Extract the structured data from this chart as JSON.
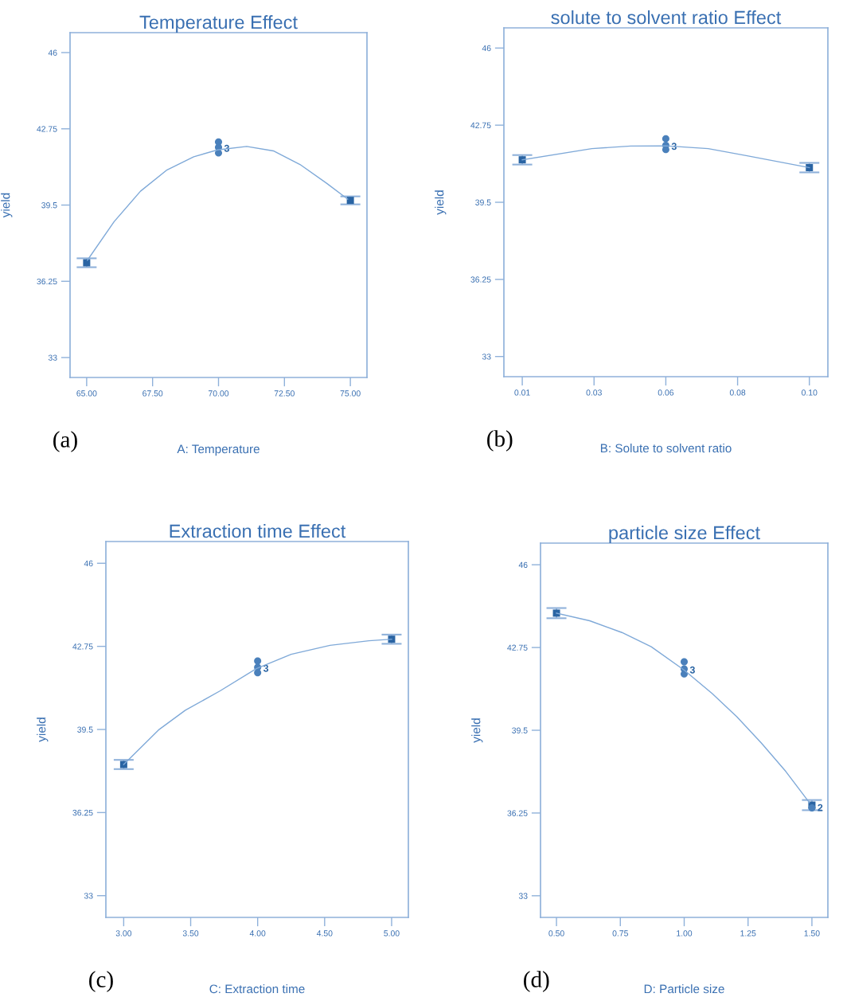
{
  "chart_data": [
    {
      "type": "line",
      "title": "Temperature Effect",
      "xlabel": "A: Temperature",
      "ylabel": "yield",
      "xlim": [
        64.37,
        75.63
      ],
      "ylim": [
        32.15,
        46.85
      ],
      "xticks": [
        {
          "value": 65,
          "label": "65.00"
        },
        {
          "value": 67.5,
          "label": "67.50"
        },
        {
          "value": 70,
          "label": "70.00"
        },
        {
          "value": 72.5,
          "label": "72.50"
        },
        {
          "value": 75,
          "label": "75.00"
        }
      ],
      "yticks": [
        33,
        36.25,
        39.5,
        42.75,
        46
      ],
      "series": [
        {
          "type": "line",
          "color": "#7fa9d8",
          "marker": "none",
          "line_style": "solid",
          "x": [
            65.03,
            66.04,
            67.04,
            68.05,
            69.06,
            69.96,
            71.07,
            72.08,
            73.09,
            74.1,
            74.9
          ],
          "values": [
            37.15,
            38.79,
            40.09,
            41.0,
            41.56,
            41.85,
            42.0,
            41.81,
            41.23,
            40.43,
            39.75
          ]
        },
        {
          "type": "scatter",
          "color": "#4a80bb",
          "marker": "circle",
          "x": [
            70,
            70,
            70
          ],
          "values": [
            42.19,
            41.96,
            41.72
          ]
        },
        {
          "type": "scatter",
          "color": "#2a64a3",
          "marker": "square",
          "x": [
            65,
            75
          ],
          "values": [
            37.04,
            39.7
          ],
          "errors": [
            0.19,
            0.17
          ]
        }
      ],
      "annotations": [
        {
          "text": "3",
          "x": 70,
          "y": 41.96
        },
        "(a)"
      ]
    },
    {
      "type": "line",
      "title": "solute to solvent ratio Effect",
      "xlabel": "B: Solute to solvent ratio",
      "ylabel": "yield",
      "xlim": [
        0.00424,
        0.1058
      ],
      "ylim": [
        32.15,
        46.85
      ],
      "xticks": [
        0.01,
        {
          "value": 0.0325,
          "label": "0.03"
        },
        {
          "value": 0.055,
          "label": "0.06"
        },
        {
          "value": 0.0775,
          "label": "0.08"
        },
        {
          "value": 0.1,
          "label": "0.10"
        }
      ],
      "yticks": [
        33,
        36.25,
        39.5,
        42.75,
        46
      ],
      "series": [
        {
          "type": "line",
          "color": "#7fa9d8",
          "marker": "none",
          "line_style": "solid",
          "x": [
            0.01,
            0.0318,
            0.044,
            0.055,
            0.0683,
            0.0805,
            0.1
          ],
          "values": [
            41.29,
            41.76,
            41.87,
            41.88,
            41.76,
            41.46,
            40.96
          ]
        },
        {
          "type": "scatter",
          "color": "#4a80bb",
          "marker": "circle",
          "x": [
            0.055,
            0.055,
            0.055
          ],
          "values": [
            42.18,
            41.9,
            41.72
          ]
        },
        {
          "type": "scatter",
          "color": "#2a64a3",
          "marker": "square",
          "x": [
            0.01,
            0.1
          ],
          "values": [
            41.29,
            40.96
          ],
          "errors": [
            0.2,
            0.2
          ]
        }
      ],
      "annotations": [
        {
          "text": "3",
          "x": 0.055,
          "y": 41.9
        },
        "(b)"
      ]
    },
    {
      "type": "line",
      "title": "Extraction time Effect",
      "xlabel": "C: Extraction time",
      "ylabel": "yield",
      "xlim": [
        2.867,
        5.125
      ],
      "ylim": [
        32.15,
        46.85
      ],
      "xticks": [
        {
          "value": 3,
          "label": "3.00"
        },
        {
          "value": 3.5,
          "label": "3.50"
        },
        {
          "value": 4,
          "label": "4.00"
        },
        {
          "value": 4.5,
          "label": "4.50"
        },
        {
          "value": 5,
          "label": "5.00"
        }
      ],
      "yticks": [
        33,
        36.25,
        39.5,
        42.75,
        46
      ],
      "series": [
        {
          "type": "line",
          "color": "#7fa9d8",
          "marker": "none",
          "line_style": "solid",
          "x": [
            3.0,
            3.26,
            3.46,
            3.72,
            3.99,
            4.25,
            4.54,
            4.83,
            5.0
          ],
          "values": [
            38.13,
            39.48,
            40.25,
            41.01,
            41.88,
            42.44,
            42.79,
            42.97,
            43.03
          ]
        },
        {
          "type": "scatter",
          "color": "#4a80bb",
          "marker": "circle",
          "x": [
            4,
            4,
            4
          ],
          "values": [
            42.18,
            41.93,
            41.72
          ]
        },
        {
          "type": "scatter",
          "color": "#2a64a3",
          "marker": "square",
          "x": [
            3,
            5
          ],
          "values": [
            38.13,
            43.03
          ],
          "errors": [
            0.18,
            0.18
          ]
        }
      ],
      "annotations": [
        {
          "text": "3",
          "x": 4,
          "y": 41.93
        },
        "(c)"
      ]
    },
    {
      "type": "line",
      "title": "particle size Effect",
      "xlabel": "D: Particle size",
      "ylabel": "yield",
      "xlim": [
        0.4375,
        1.5625
      ],
      "ylim": [
        32.15,
        46.85
      ],
      "xticks": [
        {
          "value": 0.5,
          "label": "0.50"
        },
        0.75,
        {
          "value": 1,
          "label": "1.00"
        },
        1.25,
        {
          "value": 1.5,
          "label": "1.50"
        }
      ],
      "yticks": [
        33,
        36.25,
        39.5,
        42.75,
        46
      ],
      "series": [
        {
          "type": "line",
          "color": "#7fa9d8",
          "marker": "none",
          "line_style": "solid",
          "x": [
            0.5,
            0.63,
            0.756,
            0.871,
            1.0,
            1.11,
            1.206,
            1.302,
            1.398,
            1.49
          ],
          "values": [
            44.1,
            43.8,
            43.34,
            42.78,
            41.86,
            40.94,
            40.03,
            39.0,
            37.88,
            36.66
          ]
        },
        {
          "type": "scatter",
          "color": "#4a80bb",
          "marker": "circle",
          "x": [
            1,
            1,
            1,
            1.5
          ],
          "values": [
            42.19,
            41.91,
            41.71,
            36.45
          ]
        },
        {
          "type": "scatter",
          "color": "#2a64a3",
          "marker": "square",
          "x": [
            0.5,
            1.5
          ],
          "values": [
            44.1,
            36.56
          ],
          "errors": [
            0.2,
            0.2
          ]
        }
      ],
      "annotations": [
        {
          "text": "3",
          "x": 1,
          "y": 41.91
        },
        {
          "text": "2",
          "x": 1.5,
          "y": 36.5
        },
        "(d)"
      ]
    }
  ]
}
